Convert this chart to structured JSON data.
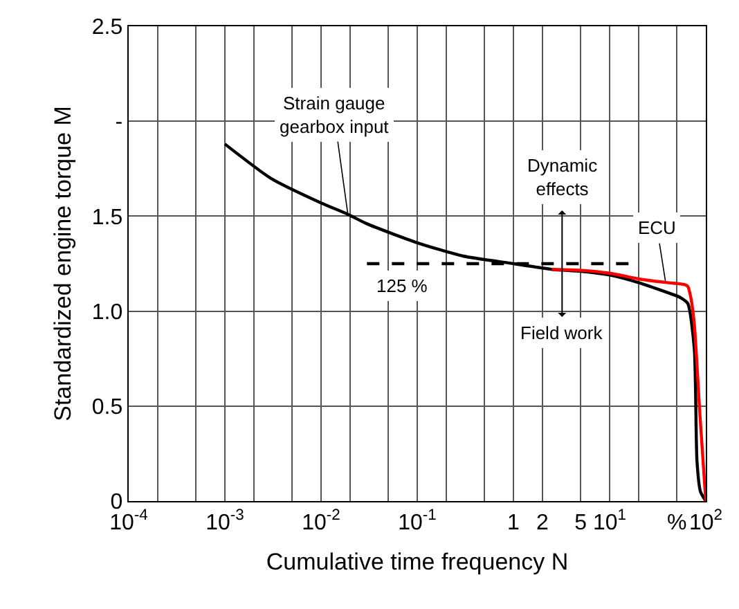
{
  "chart_data": {
    "type": "line",
    "xlabel": "Cumulative time frequency N",
    "ylabel": "Standardized engine torque M",
    "log": "x",
    "grid": true,
    "xlim": [
      0.0001,
      100
    ],
    "xticks": [
      {
        "value": 0.0001,
        "label": "10$^{-4}$"
      },
      {
        "value": 0.0002,
        "label": null
      },
      {
        "value": 0.0005,
        "label": null
      },
      {
        "value": 0.001,
        "label": "10$^{-3}$"
      },
      {
        "value": 0.002,
        "label": null
      },
      {
        "value": 0.005,
        "label": null
      },
      {
        "value": 0.01,
        "label": "10$^{-2}$"
      },
      {
        "value": 0.02,
        "label": null
      },
      {
        "value": 0.05,
        "label": null
      },
      {
        "value": 0.1,
        "label": "10$^{-1}$"
      },
      {
        "value": 0.2,
        "label": null
      },
      {
        "value": 0.5,
        "label": null
      },
      1,
      2,
      5,
      {
        "value": 10,
        "label": "10$^{1}$"
      },
      {
        "value": 20,
        "label": null
      },
      {
        "value": 50,
        "label": "%"
      },
      {
        "value": 100,
        "label": "10$^{2}$"
      }
    ],
    "ylim": [
      0,
      2.5
    ],
    "yticks": [
      0,
      0.5,
      {
        "value": 1,
        "label": "1.0"
      },
      1.5,
      {
        "value": 2,
        "label": "-"
      },
      2.5
    ],
    "series": [
      {
        "color": "#000000",
        "x": [
          0.001,
          0.003,
          0.01,
          0.019,
          0.03,
          0.1,
          0.3,
          1,
          2.5,
          5,
          10,
          20,
          30,
          50,
          55,
          65,
          76,
          81,
          88,
          100
        ],
        "values": [
          1.88,
          1.7,
          1.57,
          1.51,
          1.46,
          1.36,
          1.29,
          1.25,
          1.22,
          1.21,
          1.19,
          1.15,
          1.12,
          1.08,
          1.07,
          1.04,
          0.8,
          0.21,
          0.05,
          0
        ]
      },
      {
        "color": "#ff0000",
        "x": [
          2.5,
          5,
          10,
          20,
          40,
          60,
          65,
          70,
          76,
          87,
          100
        ],
        "values": [
          1.22,
          1.215,
          1.2,
          1.17,
          1.15,
          1.14,
          1.13,
          1.07,
          0.93,
          0.45,
          0
        ]
      },
      {
        "color": "#000000",
        "line_style": "dashed",
        "x": [
          0.03,
          17
        ],
        "values": [
          1.25,
          1.25
        ]
      }
    ],
    "annotations": [
      {
        "text": "Strain gauge\ngearbox input",
        "x": 0.019,
        "y": 1.51
      },
      {
        "text": "ECU",
        "x": 38,
        "y": 1.16
      },
      {
        "text": "125 %",
        "x": 0.05,
        "y": 1.25
      },
      "Dynamic\neffects",
      "Field work"
    ]
  }
}
